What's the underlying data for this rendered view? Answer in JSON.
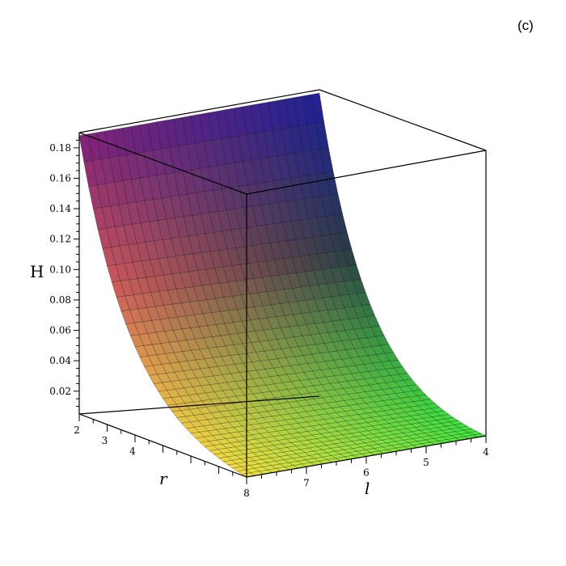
{
  "panel_label": "(c)",
  "chart_data": {
    "type": "surface3d",
    "zlabel": "H",
    "xlabel": "r",
    "ylabel": "l",
    "x_range": [
      2,
      8
    ],
    "y_range": [
      4,
      8
    ],
    "z_range": [
      0.005,
      0.19
    ],
    "z_ticks": [
      "0.02",
      "0.04",
      "0.06",
      "0.08",
      "0.10",
      "0.12",
      "0.14",
      "0.16",
      "0.18"
    ],
    "x_ticks": [
      "2",
      "3",
      "4"
    ],
    "x_end_tick": "8",
    "y_ticks": [
      "7",
      "6",
      "5",
      "4"
    ],
    "corner_values": {
      "r2_l4": 0.188,
      "r2_l8": 0.188,
      "r8_l8": 0.005,
      "r8_l4": 0.005
    },
    "colormap": [
      "#7a1f7a",
      "#cc5a5a",
      "#f2e040",
      "#3f3f9a",
      "#40e840",
      "#1f1f9a"
    ]
  }
}
